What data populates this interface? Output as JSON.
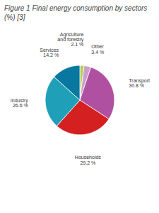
{
  "chart_data": {
    "type": "pie",
    "title": "Figure 1 Final energy consumption by sectors (%) [3]",
    "categories": [
      "Agriculture\nand forestry",
      "Other",
      "Transport",
      "Households",
      "Industry",
      "Services"
    ],
    "values": [
      2.1,
      3.4,
      30.8,
      29.2,
      26.6,
      14.2
    ],
    "value_labels": [
      "2.1 %",
      "3.4 %",
      "30.8 %",
      "29.2 %",
      "26.6 %",
      "14.2 %"
    ],
    "colors": [
      "#b8cc55",
      "#c8a0c8",
      "#b050a0",
      "#d42020",
      "#20a0b8",
      "#0878a0"
    ],
    "data_labels": true
  }
}
